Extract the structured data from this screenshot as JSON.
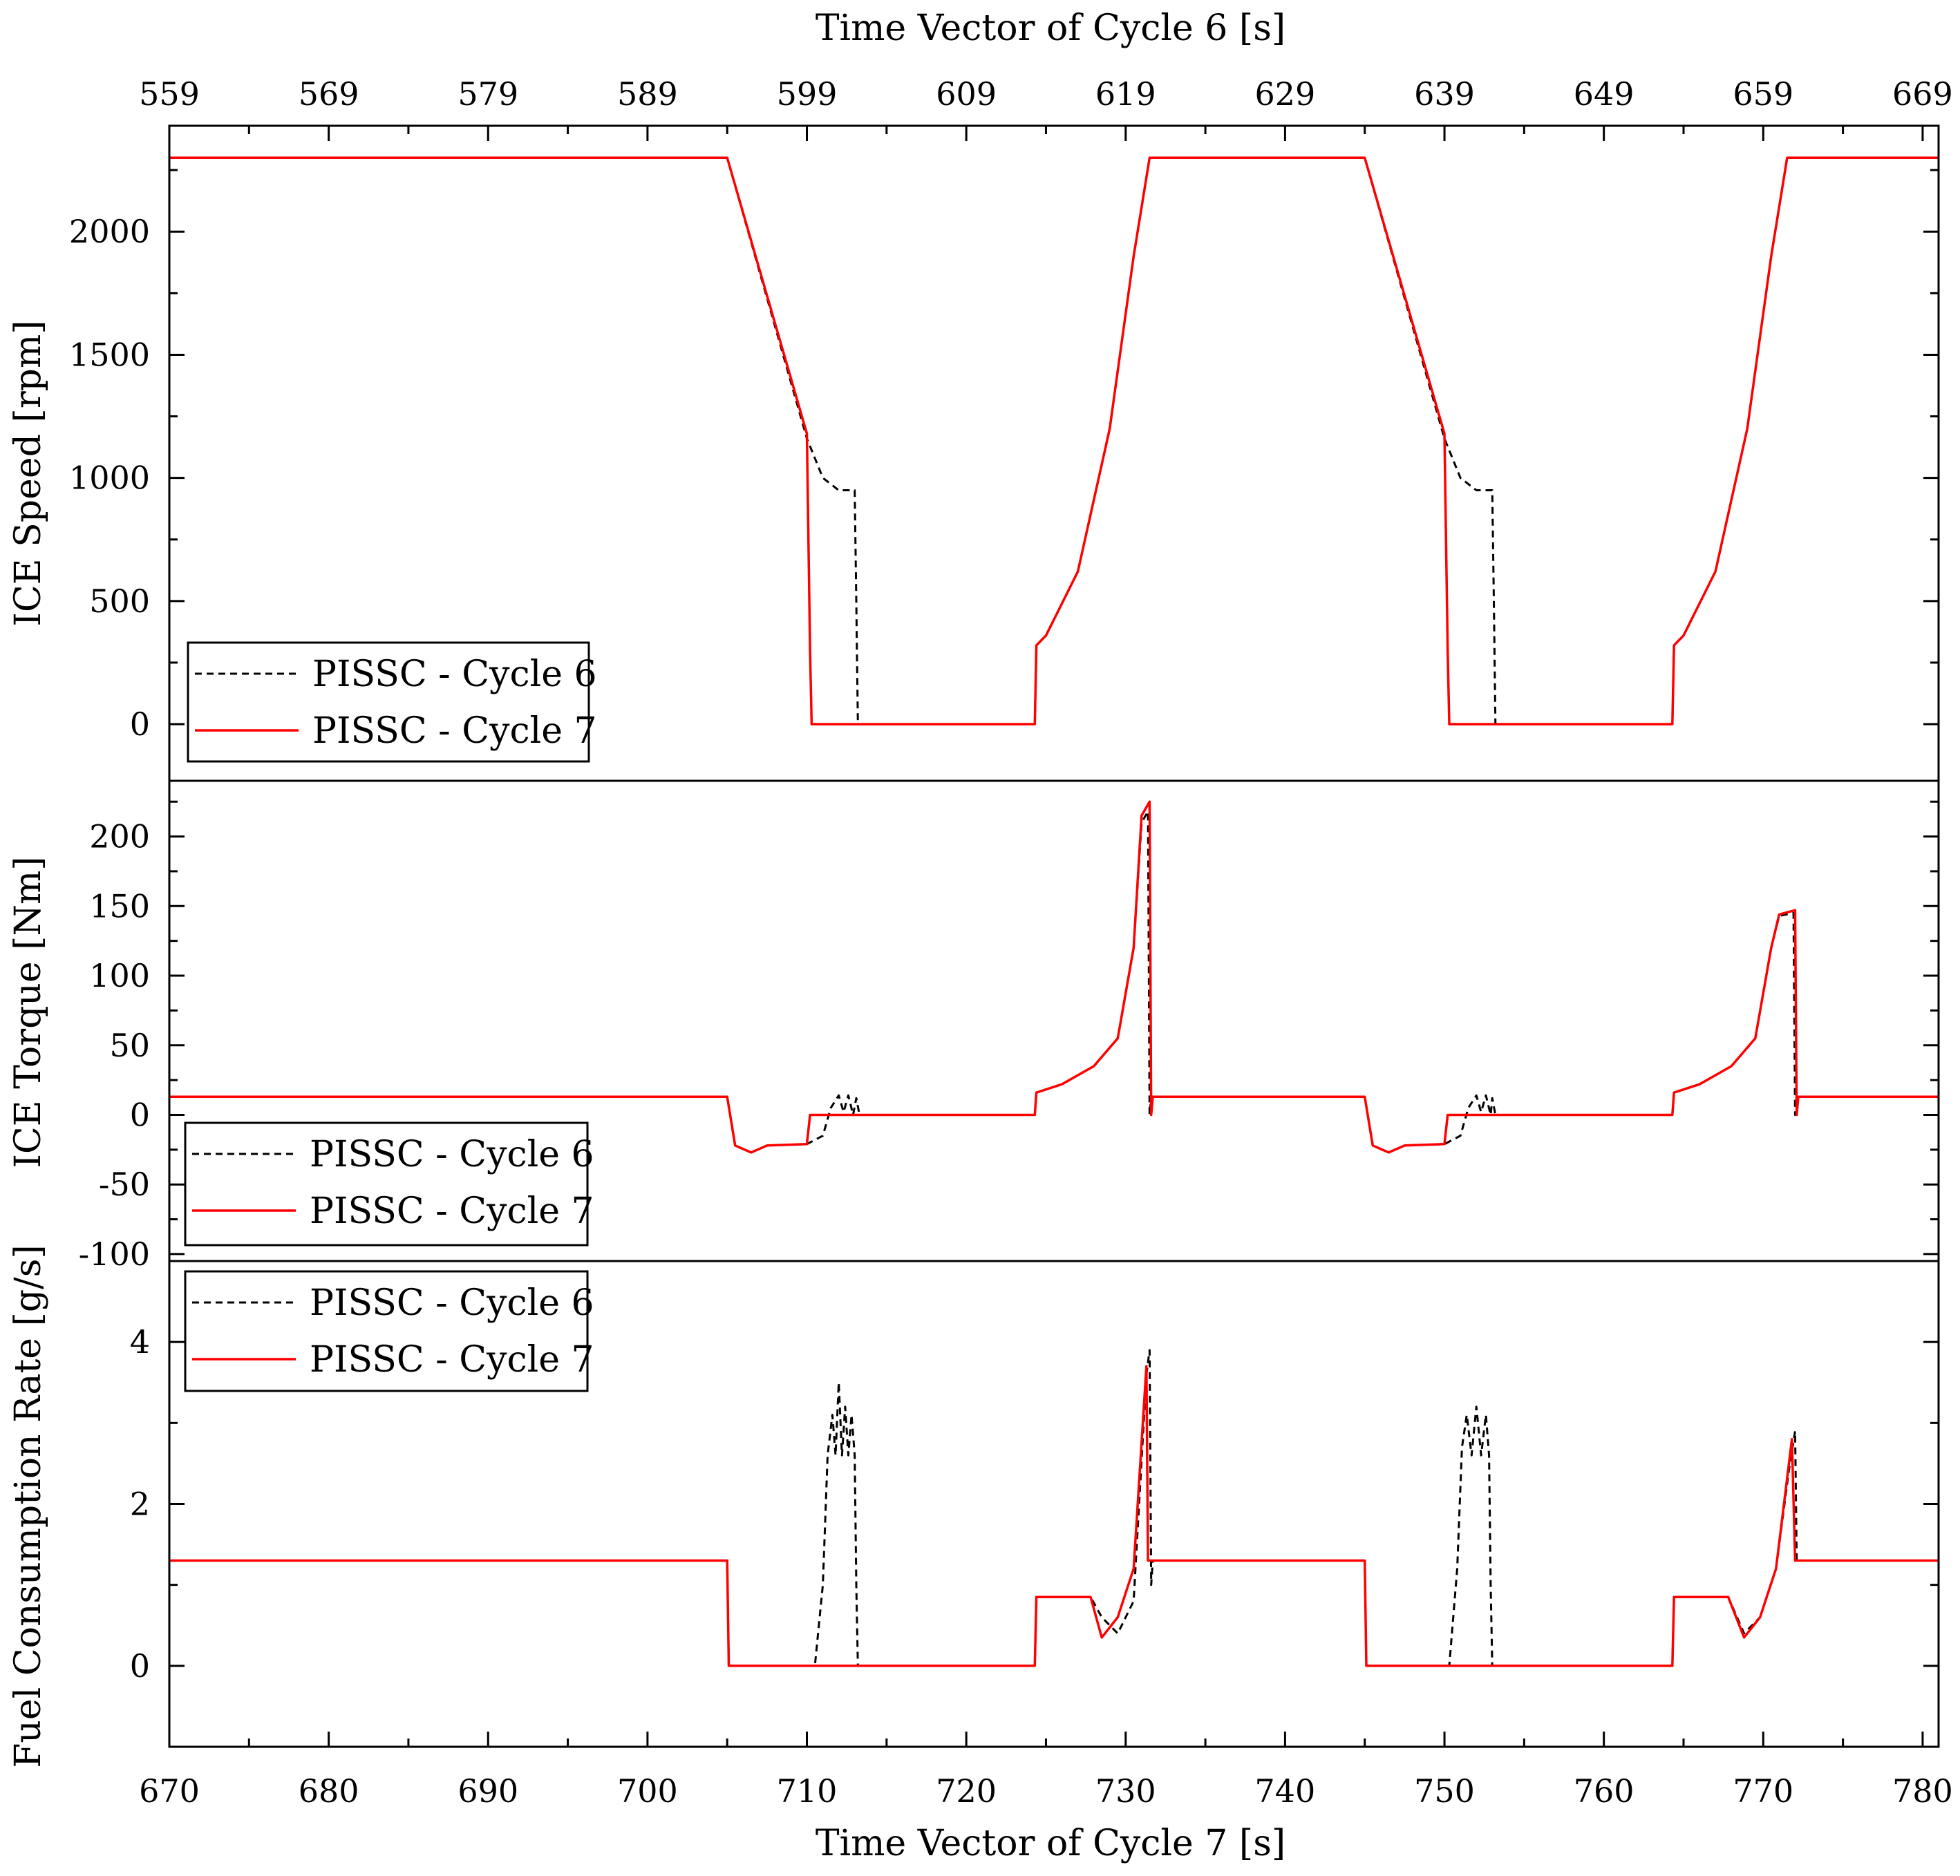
{
  "chart_data": {
    "type": "line",
    "top_axis": {
      "label": "Time Vector of Cycle 6 [s]",
      "range": [
        559,
        670
      ],
      "ticks": [
        559,
        569,
        579,
        589,
        599,
        609,
        619,
        629,
        639,
        649,
        659,
        669
      ]
    },
    "bottom_axis": {
      "label": "Time Vector of Cycle 7 [s]",
      "range": [
        670,
        781
      ],
      "ticks": [
        670,
        680,
        690,
        700,
        710,
        720,
        730,
        740,
        750,
        760,
        770,
        780
      ]
    },
    "colors": {
      "cycle6": "#000000",
      "cycle7": "#ff0000"
    },
    "panels": [
      {
        "id": "speed",
        "ylabel": "ICE Speed [rpm]",
        "ylim": [
          -230,
          2430
        ],
        "yticks": [
          0,
          500,
          1000,
          1500,
          2000
        ],
        "legend_position": "bottom-left",
        "series": [
          {
            "name": "PISSC - Cycle 6",
            "style": "dashed",
            "x": [
              670,
              705,
              710,
              711,
              712,
              713,
              713.1,
              713.2,
              724.3,
              724.4,
              725,
              727,
              729,
              730.5,
              731.5,
              745,
              750,
              751,
              752,
              753,
              753.1,
              753.2,
              764.3,
              764.4,
              765,
              767,
              769,
              770.5,
              771.5,
              781
            ],
            "y": [
              2300,
              2300,
              1160,
              1000,
              950,
              950,
              500,
              0,
              0,
              320,
              360,
              620,
              1200,
              1900,
              2300,
              2300,
              1160,
              1000,
              950,
              950,
              500,
              0,
              0,
              320,
              360,
              620,
              1200,
              1900,
              2300,
              2300
            ]
          },
          {
            "name": "PISSC - Cycle 7",
            "style": "solid",
            "x": [
              670,
              705,
              710,
              710.2,
              710.3,
              724.3,
              724.4,
              725,
              727,
              729,
              730.5,
              731.5,
              745,
              750,
              750.2,
              750.3,
              764.3,
              764.4,
              765,
              767,
              769,
              770.5,
              771.5,
              781
            ],
            "y": [
              2300,
              2300,
              1180,
              300,
              0,
              0,
              320,
              360,
              620,
              1200,
              1900,
              2300,
              2300,
              1180,
              300,
              0,
              0,
              320,
              360,
              620,
              1200,
              1900,
              2300,
              2300
            ]
          }
        ]
      },
      {
        "id": "torque",
        "ylabel": "ICE Torque [Nm]",
        "ylim": [
          -105,
          240
        ],
        "yticks": [
          -100,
          -50,
          0,
          50,
          100,
          150,
          200
        ],
        "legend_position": "bottom-left",
        "series": [
          {
            "name": "PISSC - Cycle 6",
            "style": "dashed",
            "x": [
              670,
              705,
              705.5,
              706.5,
              707.5,
              710,
              711,
              711.5,
              712,
              712.3,
              712.6,
              712.9,
              713.1,
              713.3,
              724.3,
              724.4,
              726,
              728,
              729.5,
              730.5,
              731,
              731.4,
              731.5,
              731.6,
              745,
              745.5,
              746.5,
              747.5,
              750,
              751,
              751.5,
              752,
              752.3,
              752.6,
              752.9,
              753,
              753.2,
              764.3,
              764.4,
              766,
              768,
              769.5,
              770.5,
              771,
              771.9,
              772,
              772.1,
              781
            ],
            "y": [
              13,
              13,
              -22,
              -27,
              -22,
              -21,
              -15,
              5,
              14,
              2,
              14,
              0,
              12,
              0,
              0,
              16,
              22,
              35,
              55,
              120,
              210,
              218,
              0,
              13,
              13,
              -22,
              -27,
              -22,
              -21,
              -15,
              5,
              14,
              2,
              14,
              0,
              12,
              0,
              0,
              16,
              22,
              35,
              55,
              120,
              143,
              145,
              0,
              13,
              13
            ]
          },
          {
            "name": "PISSC - Cycle 7",
            "style": "solid",
            "x": [
              670,
              705,
              705.5,
              706.5,
              707.5,
              710,
              710.2,
              724.3,
              724.4,
              726,
              728,
              729.5,
              730.5,
              731,
              731.5,
              731.6,
              731.7,
              745,
              745.5,
              746.5,
              747.5,
              750,
              750.2,
              764.3,
              764.4,
              766,
              768,
              769.5,
              770.5,
              771,
              772,
              772.1,
              772.2,
              781
            ],
            "y": [
              13,
              13,
              -22,
              -27,
              -22,
              -21,
              0,
              0,
              16,
              22,
              35,
              55,
              120,
              215,
              225,
              0,
              13,
              13,
              -22,
              -27,
              -22,
              -21,
              0,
              0,
              16,
              22,
              35,
              55,
              120,
              144,
              147,
              0,
              13,
              13
            ]
          }
        ]
      },
      {
        "id": "fuel",
        "ylabel": "Fuel Consumption Rate [g/s]",
        "ylim": [
          -1,
          5
        ],
        "yticks": [
          0,
          2,
          4
        ],
        "legend_position": "top-left",
        "series": [
          {
            "name": "PISSC - Cycle 6",
            "style": "dashed",
            "x": [
              670,
              705,
              705.1,
              710.5,
              711,
              711.3,
              711.6,
              711.8,
              712,
              712.2,
              712.4,
              712.6,
              712.8,
              713,
              713.1,
              713.2,
              724.3,
              724.4,
              727.8,
              728.5,
              729.5,
              730.5,
              731.3,
              731.5,
              731.6,
              731.7,
              745,
              745.1,
              750.3,
              750.8,
              751.1,
              751.4,
              751.7,
              752,
              752.3,
              752.6,
              752.8,
              752.9,
              753,
              764.3,
              764.4,
              767.8,
              768.8,
              769.8,
              770.8,
              771.6,
              772,
              772.1,
              781
            ],
            "y": [
              1.3,
              1.3,
              0,
              0,
              1.0,
              2.6,
              3.1,
              2.6,
              3.5,
              2.6,
              3.2,
              2.6,
              3.1,
              2.6,
              1.0,
              0,
              0,
              0.85,
              0.85,
              0.6,
              0.4,
              0.8,
              3.6,
              3.9,
              1.0,
              1.3,
              1.3,
              0,
              0,
              1.2,
              2.7,
              3.1,
              2.6,
              3.2,
              2.6,
              3.1,
              2.6,
              1.0,
              0,
              0,
              0.85,
              0.85,
              0.4,
              0.6,
              1.2,
              2.4,
              2.9,
              1.3,
              1.3
            ]
          },
          {
            "name": "PISSC - Cycle 7",
            "style": "solid",
            "x": [
              670,
              705,
              705.1,
              724.3,
              724.4,
              727.8,
              728.5,
              729.5,
              730.5,
              731.3,
              731.4,
              731.5,
              745,
              745.1,
              764.3,
              764.4,
              767.8,
              768.8,
              769.8,
              770.8,
              771.8,
              772,
              772.1,
              781
            ],
            "y": [
              1.3,
              1.3,
              0,
              0,
              0.85,
              0.85,
              0.35,
              0.6,
              1.2,
              3.7,
              1.3,
              1.3,
              1.3,
              0,
              0,
              0.85,
              0.85,
              0.35,
              0.6,
              1.2,
              2.8,
              1.3,
              1.3,
              1.3
            ]
          }
        ]
      }
    ]
  }
}
